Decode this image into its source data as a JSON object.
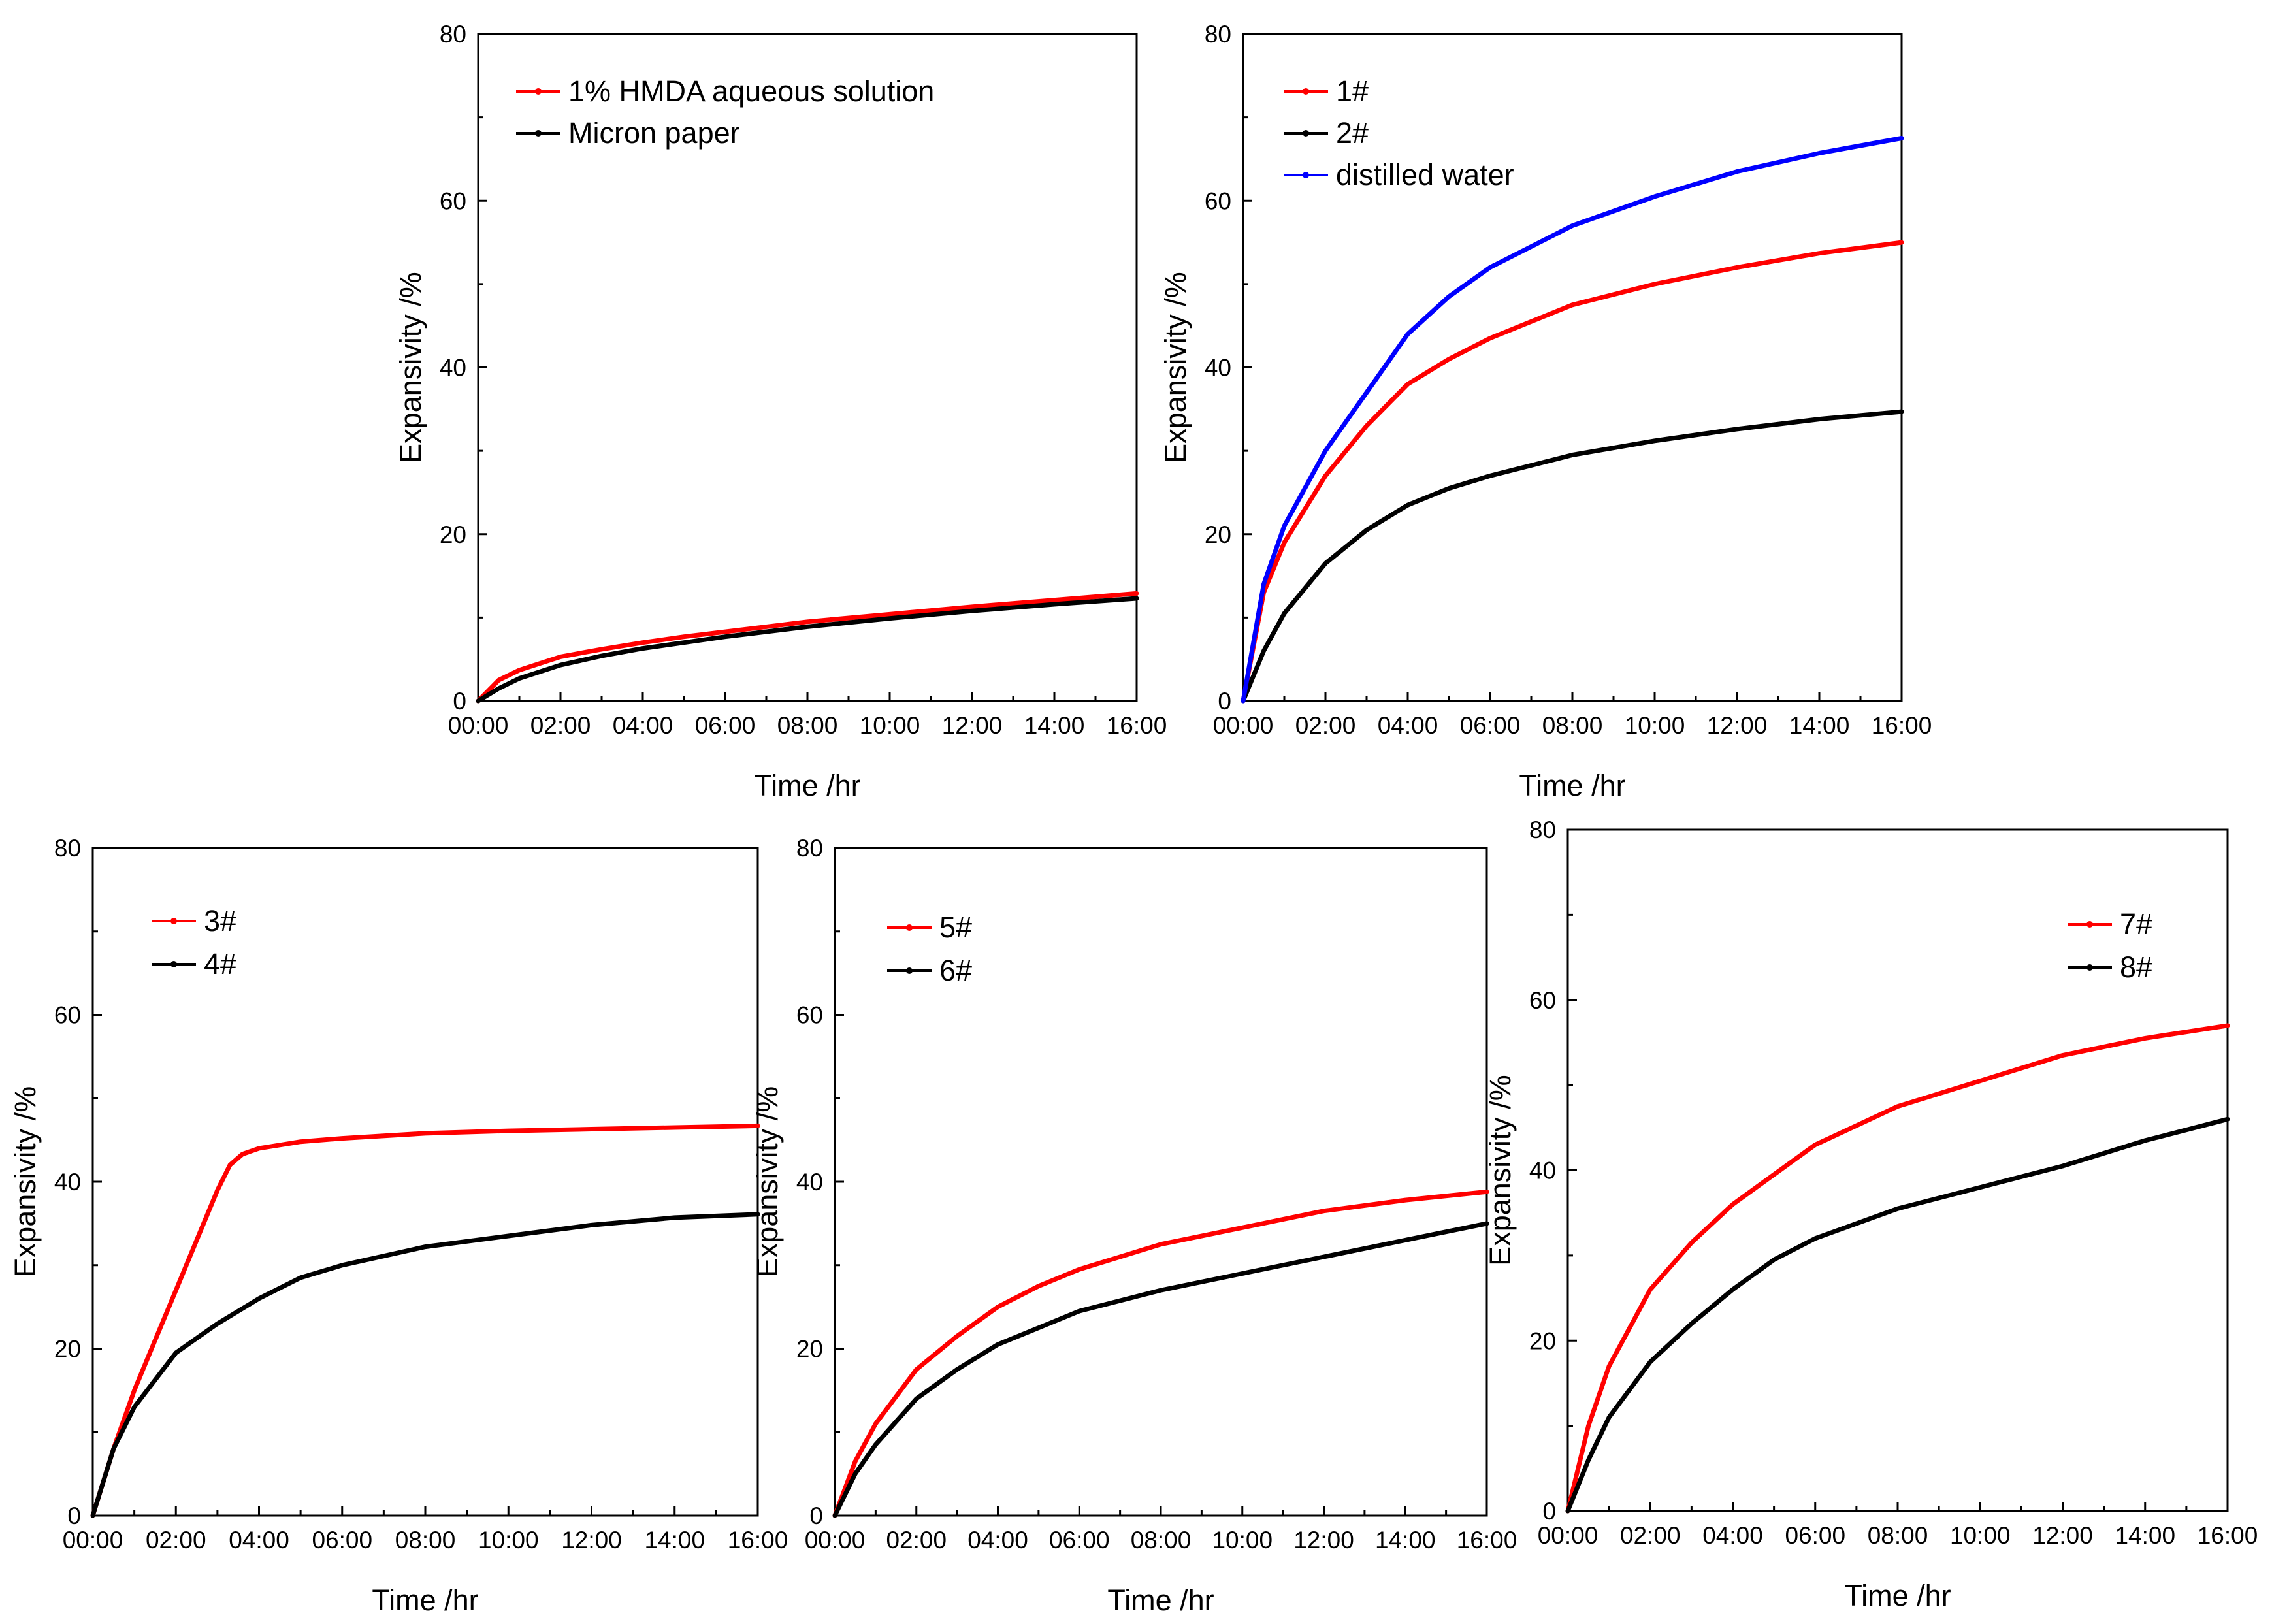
{
  "chart_data": [
    {
      "type": "line",
      "xlabel": "Time /hr",
      "ylabel": "Expansivity /%",
      "x_tick_labels": [
        "00:00",
        "02:00",
        "04:00",
        "06:00",
        "08:00",
        "10:00",
        "12:00",
        "14:00",
        "16:00"
      ],
      "y_tick_labels": [
        "0",
        "20",
        "40",
        "60",
        "80"
      ],
      "xlim": [
        0,
        16
      ],
      "ylim": [
        0,
        80
      ],
      "legend_position": "top-left",
      "series": [
        {
          "name": "1% HMDA aqueous solution",
          "color": "#ff0000",
          "x": [
            0,
            0.5,
            1,
            2,
            3,
            4,
            5,
            6,
            8,
            10,
            12,
            14,
            16
          ],
          "y": [
            0,
            2.5,
            3.7,
            5.3,
            6.2,
            7.0,
            7.7,
            8.3,
            9.5,
            10.4,
            11.3,
            12.1,
            12.9
          ]
        },
        {
          "name": "Micron paper",
          "color": "#000000",
          "x": [
            0,
            0.5,
            1,
            2,
            3,
            4,
            5,
            6,
            8,
            10,
            12,
            14,
            16
          ],
          "y": [
            0,
            1.5,
            2.7,
            4.3,
            5.4,
            6.3,
            7.0,
            7.7,
            8.9,
            9.9,
            10.8,
            11.6,
            12.3
          ]
        }
      ]
    },
    {
      "type": "line",
      "xlabel": "Time /hr",
      "ylabel": "Expansivity /%",
      "x_tick_labels": [
        "00:00",
        "02:00",
        "04:00",
        "06:00",
        "08:00",
        "10:00",
        "12:00",
        "14:00",
        "16:00"
      ],
      "y_tick_labels": [
        "0",
        "20",
        "40",
        "60",
        "80"
      ],
      "xlim": [
        0,
        16
      ],
      "ylim": [
        0,
        80
      ],
      "legend_position": "top-left",
      "series": [
        {
          "name": "1#",
          "color": "#ff0000",
          "x": [
            0,
            0.5,
            1,
            2,
            3,
            4,
            5,
            6,
            8,
            10,
            12,
            14,
            16
          ],
          "y": [
            0,
            13,
            19,
            27,
            33,
            38,
            41,
            43.5,
            47.5,
            50,
            52,
            53.7,
            55
          ]
        },
        {
          "name": "2#",
          "color": "#000000",
          "x": [
            0,
            0.5,
            1,
            2,
            3,
            4,
            5,
            6,
            8,
            10,
            12,
            14,
            16
          ],
          "y": [
            0,
            6,
            10.5,
            16.5,
            20.5,
            23.5,
            25.5,
            27,
            29.5,
            31.2,
            32.6,
            33.8,
            34.7
          ]
        },
        {
          "name": "distilled water",
          "color": "#0000ff",
          "x": [
            0,
            0.5,
            1,
            2,
            3,
            4,
            5,
            6,
            8,
            10,
            12,
            14,
            16
          ],
          "y": [
            0,
            14,
            21,
            30,
            37,
            44,
            48.5,
            52,
            57,
            60.5,
            63.5,
            65.7,
            67.5
          ]
        }
      ]
    },
    {
      "type": "line",
      "xlabel": "Time /hr",
      "ylabel": "Expansivity /%",
      "x_tick_labels": [
        "00:00",
        "02:00",
        "04:00",
        "06:00",
        "08:00",
        "10:00",
        "12:00",
        "14:00",
        "16:00"
      ],
      "y_tick_labels": [
        "0",
        "20",
        "40",
        "60",
        "80"
      ],
      "xlim": [
        0,
        16
      ],
      "ylim": [
        0,
        80
      ],
      "legend_position": "top-left",
      "series": [
        {
          "name": "3#",
          "color": "#ff0000",
          "x": [
            0,
            0.5,
            1,
            1.5,
            2,
            2.5,
            3,
            3.3,
            3.6,
            4,
            5,
            6,
            8,
            10,
            12,
            14,
            16
          ],
          "y": [
            0,
            8,
            15,
            21,
            27,
            33,
            39,
            42,
            43.3,
            44,
            44.8,
            45.2,
            45.8,
            46.1,
            46.3,
            46.5,
            46.7
          ]
        },
        {
          "name": "4#",
          "color": "#000000",
          "x": [
            0,
            0.5,
            1,
            2,
            3,
            4,
            5,
            6,
            8,
            10,
            12,
            14,
            16
          ],
          "y": [
            0,
            8,
            13,
            19.5,
            23,
            26,
            28.5,
            30,
            32.2,
            33.5,
            34.8,
            35.7,
            36.1
          ]
        }
      ]
    },
    {
      "type": "line",
      "xlabel": "Time /hr",
      "ylabel": "Expansivity /%",
      "x_tick_labels": [
        "00:00",
        "02:00",
        "04:00",
        "06:00",
        "08:00",
        "10:00",
        "12:00",
        "14:00",
        "16:00"
      ],
      "y_tick_labels": [
        "0",
        "20",
        "40",
        "60",
        "80"
      ],
      "xlim": [
        0,
        16
      ],
      "ylim": [
        0,
        80
      ],
      "legend_position": "top-left",
      "series": [
        {
          "name": "5#",
          "color": "#ff0000",
          "x": [
            0,
            0.5,
            1,
            2,
            3,
            4,
            5,
            6,
            8,
            10,
            12,
            14,
            16
          ],
          "y": [
            0,
            6.5,
            11,
            17.5,
            21.5,
            25,
            27.5,
            29.5,
            32.5,
            34.5,
            36.5,
            37.8,
            38.8
          ]
        },
        {
          "name": "6#",
          "color": "#000000",
          "x": [
            0,
            0.5,
            1,
            2,
            3,
            4,
            5,
            6,
            8,
            10,
            12,
            14,
            16
          ],
          "y": [
            0,
            5,
            8.5,
            14,
            17.5,
            20.5,
            22.5,
            24.5,
            27,
            29,
            31,
            33,
            35
          ]
        }
      ]
    },
    {
      "type": "line",
      "xlabel": "Time /hr",
      "ylabel": "Expansivity /%",
      "x_tick_labels": [
        "00:00",
        "02:00",
        "04:00",
        "06:00",
        "08:00",
        "10:00",
        "12:00",
        "14:00",
        "16:00"
      ],
      "y_tick_labels": [
        "0",
        "20",
        "40",
        "60",
        "80"
      ],
      "xlim": [
        0,
        16
      ],
      "ylim": [
        0,
        80
      ],
      "legend_position": "top-right",
      "series": [
        {
          "name": "7#",
          "color": "#ff0000",
          "x": [
            0,
            0.5,
            1,
            2,
            3,
            4,
            5,
            6,
            8,
            10,
            12,
            14,
            16
          ],
          "y": [
            0,
            10,
            17,
            26,
            31.5,
            36,
            39.5,
            43,
            47.5,
            50.5,
            53.5,
            55.5,
            57
          ]
        },
        {
          "name": "8#",
          "color": "#000000",
          "x": [
            0,
            0.5,
            1,
            2,
            3,
            4,
            5,
            6,
            8,
            10,
            12,
            14,
            16
          ],
          "y": [
            0,
            6,
            11,
            17.5,
            22,
            26,
            29.5,
            32,
            35.5,
            38,
            40.5,
            43.5,
            46
          ]
        }
      ]
    }
  ]
}
